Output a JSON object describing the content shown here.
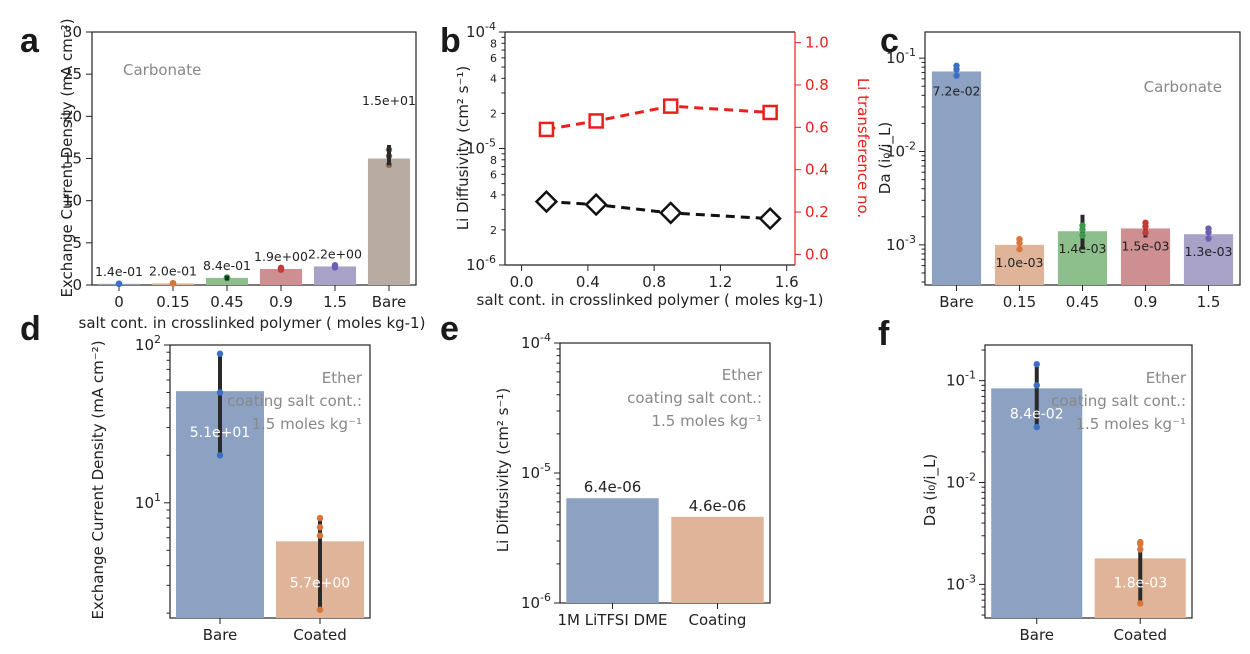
{
  "colors": {
    "blue": "#8da2c3",
    "orange": "#e0b498",
    "green": "#8dbf8d",
    "red": "#cd8f91",
    "purple": "#a9a2c8",
    "tan": "#b8aba2",
    "dot_blue": "#3a6fc4",
    "dot_orange": "#d9743a",
    "dot_green": "#3c9b4a",
    "dot_red": "#c23a3a",
    "dot_purple": "#6b5fb5",
    "dot_brown": "#8c6b55",
    "axis": "#222222",
    "annot": "#888888",
    "red_axis": "#e8211c"
  },
  "chart_data": [
    {
      "panel": "a",
      "type": "bar",
      "categories": [
        "0",
        "0.15",
        "0.45",
        "0.9",
        "1.5",
        "Bare"
      ],
      "values": [
        0.14,
        0.2,
        0.84,
        1.9,
        2.2,
        15
      ],
      "value_labels": [
        "1.4e-01",
        "2.0e-01",
        "8.4e-01",
        "1.9e+00",
        "2.2e+00",
        "1.5e+01"
      ],
      "ylabel": "Exchange Current Density (mA cm⁻²)",
      "xlabel": "salt cont. in crosslinked polymer ( moles kg-1)",
      "ylim": [
        0,
        30
      ],
      "yticks": [
        0,
        5,
        10,
        15,
        20,
        25,
        30
      ],
      "annotation": "Carbonate",
      "scale": "linear"
    },
    {
      "panel": "b",
      "type": "line",
      "xlabel": "salt cont. in crosslinked polymer ( moles kg-1)",
      "ylabel": "Li Diffusivity (cm² s⁻¹)",
      "ylabel_right": "Li transference no.",
      "xlim": [
        -0.1,
        1.65
      ],
      "xticks": [
        "0.0",
        "0.4",
        "0.8",
        "1.2",
        "1.6"
      ],
      "ylim": [
        "1e-6",
        "1e-4"
      ],
      "ylim_right": [
        -0.05,
        1.05
      ],
      "yticks_right": [
        "0.0",
        "0.2",
        "0.4",
        "0.6",
        "0.8",
        "1.0"
      ],
      "scale": "log",
      "series": [
        {
          "x": [
            0.15,
            0.45,
            0.9,
            1.5
          ],
          "values": [
            3.5e-06,
            3.3e-06,
            2.8e-06,
            2.5e-06
          ],
          "axis": "left",
          "marker": "diamond"
        },
        {
          "x": [
            0.15,
            0.45,
            0.9,
            1.5
          ],
          "values": [
            0.59,
            0.63,
            0.7,
            0.67
          ],
          "axis": "right",
          "marker": "square"
        }
      ]
    },
    {
      "panel": "c",
      "type": "bar",
      "categories": [
        "Bare",
        "0.15",
        "0.45",
        "0.9",
        "1.5"
      ],
      "values": [
        0.072,
        0.001,
        0.0014,
        0.0015,
        0.0013
      ],
      "value_labels": [
        "7.2e-02",
        "1.0e-03",
        "1.4e-03",
        "1.5e-03",
        "1.3e-03"
      ],
      "ylabel": "Da (i₀/i_L)",
      "annotation": "Carbonate",
      "scale": "log"
    },
    {
      "panel": "d",
      "type": "bar",
      "categories": [
        "Bare",
        "Coated"
      ],
      "values": [
        51,
        5.7
      ],
      "value_labels": [
        "5.1e+01",
        "5.7e+00"
      ],
      "ylabel": "Exchange Current Density (mA cm⁻²)",
      "annotation_lines": [
        "Ether",
        "coating salt cont.:",
        "1.5 moles kg⁻¹"
      ],
      "scale": "log"
    },
    {
      "panel": "e",
      "type": "bar",
      "categories": [
        "1M LiTFSI DME",
        "Coating"
      ],
      "values": [
        6.4e-06,
        4.6e-06
      ],
      "value_labels": [
        "6.4e-06",
        "4.6e-06"
      ],
      "ylabel": "Li Diffusivity (cm² s⁻¹)",
      "annotation_lines": [
        "Ether",
        "coating salt cont.:",
        "1.5 moles kg⁻¹"
      ],
      "scale": "log"
    },
    {
      "panel": "f",
      "type": "bar",
      "categories": [
        "Bare",
        "Coated"
      ],
      "values": [
        0.084,
        0.0018
      ],
      "value_labels": [
        "8.4e-02",
        "1.8e-03"
      ],
      "ylabel": "Da (i₀/i_L)",
      "annotation_lines": [
        "Ether",
        "coating salt cont.:",
        "1.5 moles kg⁻¹"
      ],
      "scale": "log"
    }
  ]
}
